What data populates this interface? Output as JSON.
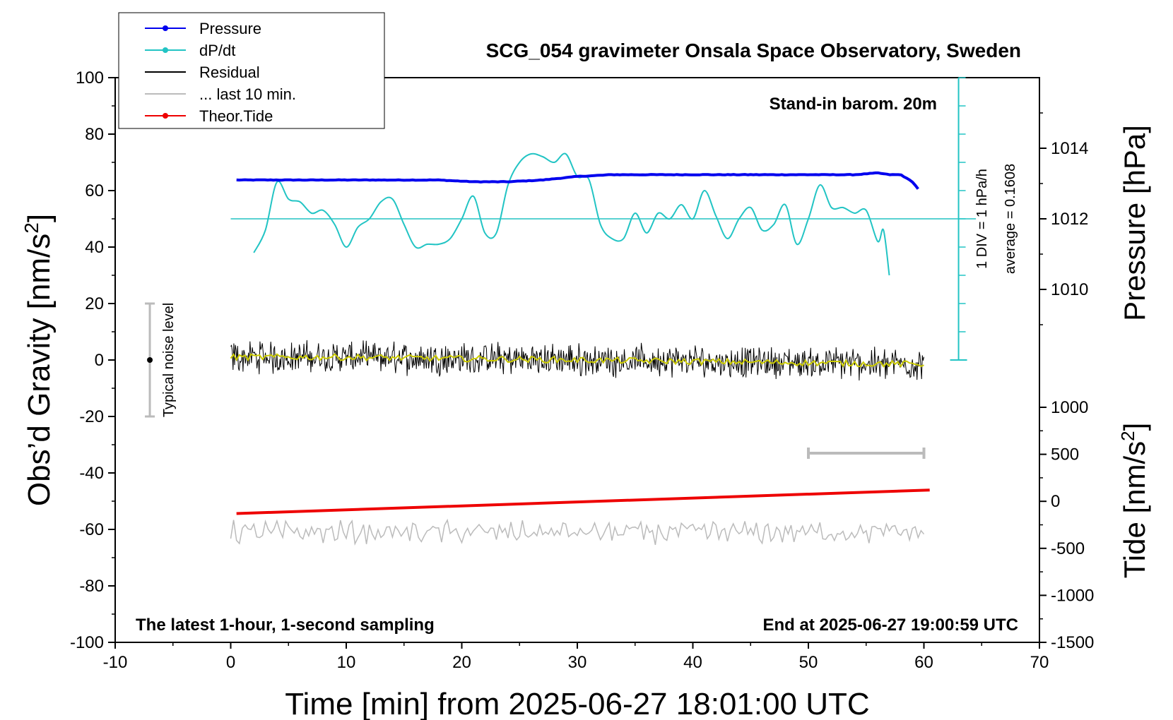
{
  "chart_data": {
    "type": "line",
    "title": "SCG_054 gravimeter Onsala Space Observatory, Sweden",
    "xlabel": "Time [min] from 2025-06-27 18:01:00 UTC",
    "ylabel": "Obs’d Gravity [nm/s",
    "ylabel_sup": "2",
    "ylabel_close": "]",
    "y2label": "Pressure [hPa]",
    "y3label": "Tide [nm/s",
    "y3label_sup": "2",
    "y3label_close": "]",
    "xlim": [
      -10,
      70
    ],
    "ylim": [
      -100,
      100
    ],
    "pressure_ylim": [
      1008,
      1016
    ],
    "tide_ylim": [
      -1500,
      1000
    ],
    "x_ticks": [
      "-10",
      "0",
      "10",
      "20",
      "30",
      "40",
      "50",
      "60",
      "70"
    ],
    "y_ticks": [
      "100",
      "80",
      "60",
      "40",
      "20",
      "0",
      "-20",
      "-40",
      "-60",
      "-80",
      "-100"
    ],
    "pressure_ticks": [
      "1014",
      "1012",
      "1010"
    ],
    "tide_ticks": [
      "1000",
      "500",
      "0",
      "-500",
      "-1000",
      "-1500"
    ],
    "notes": {
      "stand_in": "Stand-in barom. 20m",
      "latest": "The latest 1-hour, 1-second sampling",
      "end_at": "End at 2025-06-27 19:00:59 UTC",
      "div": "1 DIV = 1 hPa/h",
      "average": "average = 0.1608",
      "noise": "Typical noise level"
    },
    "legend": [
      {
        "label": "Pressure",
        "color": "#0000ee",
        "marker": true
      },
      {
        "label": "dP/dt",
        "color": "#22c4c4",
        "marker": true
      },
      {
        "label": "Residual",
        "color": "#000000",
        "marker": false
      },
      {
        "label": "... last 10 min.",
        "color": "#bbbbbb",
        "marker": false
      },
      {
        "label": "Theor.Tide",
        "color": "#ee0000",
        "marker": true
      }
    ],
    "series": [
      {
        "name": "Pressure",
        "axis": "pressure",
        "color": "#0000ee",
        "x": [
          0.5,
          3,
          6,
          9,
          12,
          15,
          18,
          21,
          24,
          27,
          30,
          33,
          36,
          39,
          42,
          45,
          48,
          51,
          54,
          56,
          57,
          58,
          59,
          59.5
        ],
        "y": [
          1013.1,
          1013.1,
          1013.1,
          1013.1,
          1013.1,
          1013.1,
          1013.1,
          1013.05,
          1013.05,
          1013.1,
          1013.2,
          1013.25,
          1013.25,
          1013.25,
          1013.25,
          1013.25,
          1013.25,
          1013.25,
          1013.25,
          1013.3,
          1013.25,
          1013.25,
          1013.05,
          1012.85
        ]
      },
      {
        "name": "dP/dt",
        "axis": "gravity",
        "color": "#22c4c4",
        "x": [
          2,
          3,
          4,
          5,
          6,
          7,
          8,
          9,
          10,
          11,
          12,
          13,
          14,
          15,
          16,
          17,
          18,
          19,
          20,
          21,
          22,
          23,
          24,
          25,
          26,
          27,
          28,
          29,
          30,
          31,
          32,
          33,
          34,
          35,
          36,
          37,
          38,
          39,
          40,
          41,
          42,
          43,
          44,
          45,
          46,
          47,
          48,
          49,
          50,
          51,
          52,
          53,
          54,
          55,
          56,
          56.5,
          57
        ],
        "y": [
          38,
          46,
          63,
          57,
          56,
          52,
          53,
          48,
          40,
          47,
          50,
          56,
          57,
          48,
          40,
          41,
          41,
          43,
          50,
          58,
          45,
          45,
          62,
          70,
          73,
          72,
          70,
          73,
          65,
          64,
          48,
          43,
          43,
          52,
          45,
          52,
          50,
          55,
          50,
          60,
          51,
          43,
          50,
          54,
          46,
          48,
          55,
          41,
          50,
          62,
          54,
          54,
          52,
          53,
          42,
          46,
          30
        ]
      },
      {
        "name": "Residual",
        "axis": "gravity",
        "color": "#000000",
        "x": [
          0,
          10,
          20,
          30,
          40,
          50,
          60
        ],
        "y": [
          1,
          1,
          0.5,
          0,
          -0.5,
          -1,
          -1.5
        ]
      },
      {
        "name": "... last 10 min.",
        "axis": "gravity",
        "color": "#bbbbbb",
        "x": [
          0,
          10,
          20,
          30,
          40,
          50,
          60
        ],
        "y": [
          -61,
          -61,
          -61,
          -61,
          -61,
          -61,
          -61
        ]
      },
      {
        "name": "Theor.Tide",
        "axis": "tide",
        "color": "#ee0000",
        "x": [
          0.5,
          60.5
        ],
        "y": [
          -130,
          120
        ]
      }
    ],
    "noise_bar": {
      "x": -7,
      "y": 0,
      "low": -20,
      "high": 20
    },
    "last10_bracket": {
      "x_start": 50,
      "x_end": 60,
      "y": -33
    },
    "dpdt_baseline": 50,
    "colors": {
      "noise_marker": "#000000",
      "bracket": "#bbbbbb",
      "smoothed_residual": "#cccc00"
    }
  }
}
